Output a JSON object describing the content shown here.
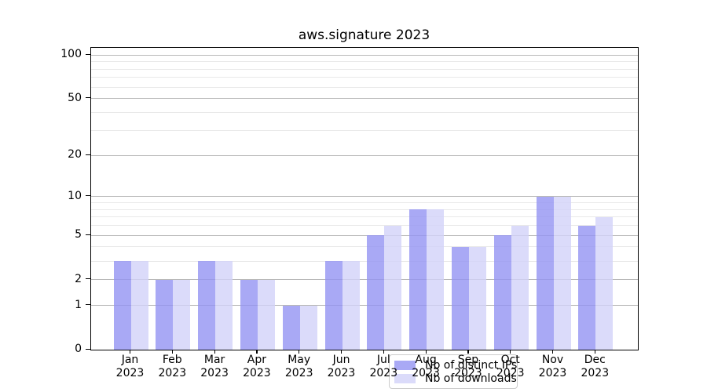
{
  "title": "aws.signature 2023",
  "chart_data": {
    "type": "bar",
    "title": "aws.signature 2023",
    "categories": [
      "Jan 2023",
      "Feb 2023",
      "Mar 2023",
      "Apr 2023",
      "May 2023",
      "Jun 2023",
      "Jul 2023",
      "Aug 2023",
      "Sep 2023",
      "Oct 2023",
      "Nov 2023",
      "Dec 2023"
    ],
    "category_line1": [
      "Jan",
      "Feb",
      "Mar",
      "Apr",
      "May",
      "Jun",
      "Jul",
      "Aug",
      "Sep",
      "Oct",
      "Nov",
      "Dec"
    ],
    "category_line2": [
      "2023",
      "2023",
      "2023",
      "2023",
      "2023",
      "2023",
      "2023",
      "2023",
      "2023",
      "2023",
      "2023",
      "2023"
    ],
    "series": [
      {
        "name": "Nb of distinct IPs",
        "color": "rgba(148,148,242,0.8)",
        "values": [
          3,
          2,
          3,
          2,
          1,
          3,
          5,
          8,
          4,
          5,
          10,
          6
        ]
      },
      {
        "name": "Nb of downloads",
        "color": "rgba(210,210,249,0.8)",
        "values": [
          3,
          2,
          3,
          2,
          1,
          3,
          6,
          8,
          4,
          6,
          10,
          7
        ]
      }
    ],
    "xlabel": "",
    "ylabel": "",
    "y_scale": "log1p",
    "y_ticks": [
      0,
      1,
      2,
      5,
      10,
      20,
      50,
      100
    ],
    "y_minor_ticks": [
      3,
      4,
      6,
      7,
      8,
      9,
      30,
      40,
      60,
      70,
      80,
      90
    ],
    "ylim": [
      0,
      112
    ],
    "grid": "horizontal",
    "legend_position": "lower right inside"
  },
  "colors": {
    "grid_major": "#b9b9b9",
    "grid_minor": "#e9e9e9",
    "axis": "#000000",
    "legend_border": "#cccccc",
    "legend_background": "rgba(255,255,255,0.8)",
    "background": "#ffffff"
  }
}
